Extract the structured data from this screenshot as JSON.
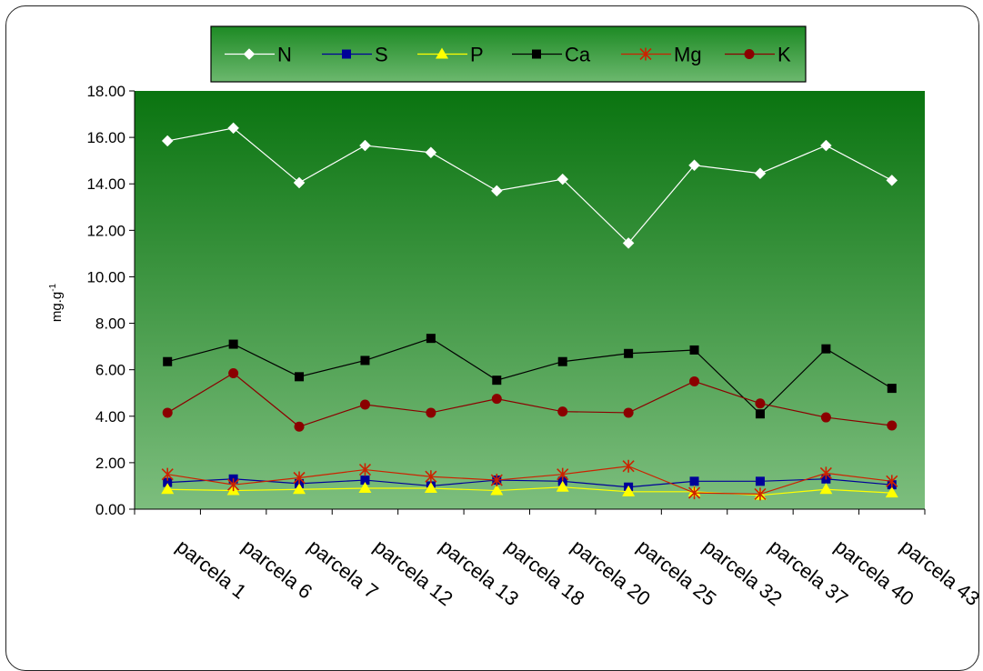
{
  "chart_data": {
    "type": "line",
    "categories": [
      "parcela 1",
      "parcela 6",
      "parcela 7",
      "parcela 12",
      "parcela 13",
      "parcela 18",
      "parcela 20",
      "parcela 25",
      "parcela 32",
      "parcela 37",
      "parcela 40",
      "parcela 43"
    ],
    "ylabel": "mg.g",
    "ylabel_sup": "-1",
    "ylim": [
      0,
      18
    ],
    "ytick_labels": [
      "0.00",
      "2.00",
      "4.00",
      "6.00",
      "8.00",
      "10.00",
      "12.00",
      "14.00",
      "16.00",
      "18.00"
    ],
    "legend_position": "top",
    "series": [
      {
        "name": "N",
        "color": "#ffffff",
        "marker": "diamond",
        "values": [
          15.85,
          16.4,
          14.05,
          15.65,
          15.35,
          13.7,
          14.2,
          11.45,
          14.8,
          14.45,
          15.65,
          14.15
        ]
      },
      {
        "name": "S",
        "color": "#000099",
        "marker": "square",
        "values": [
          1.15,
          1.3,
          1.1,
          1.25,
          1.0,
          1.25,
          1.2,
          0.95,
          1.2,
          1.2,
          1.3,
          1.05
        ]
      },
      {
        "name": "P",
        "color": "#ffff00",
        "marker": "triangle",
        "values": [
          0.85,
          0.8,
          0.85,
          0.9,
          0.9,
          0.8,
          0.95,
          0.75,
          0.75,
          0.6,
          0.85,
          0.7
        ]
      },
      {
        "name": "Ca",
        "color": "#000000",
        "marker": "square",
        "values": [
          6.35,
          7.1,
          5.7,
          6.4,
          7.35,
          5.55,
          6.35,
          6.7,
          6.85,
          4.1,
          6.9,
          5.2
        ]
      },
      {
        "name": "Mg",
        "color": "#cc2200",
        "marker": "star",
        "values": [
          1.5,
          1.05,
          1.35,
          1.7,
          1.4,
          1.25,
          1.5,
          1.85,
          0.7,
          0.65,
          1.55,
          1.2
        ]
      },
      {
        "name": "K",
        "color": "#8b0000",
        "marker": "circle",
        "values": [
          4.15,
          5.85,
          3.55,
          4.5,
          4.15,
          4.75,
          4.2,
          4.15,
          5.5,
          4.55,
          3.95,
          3.6
        ]
      }
    ]
  }
}
